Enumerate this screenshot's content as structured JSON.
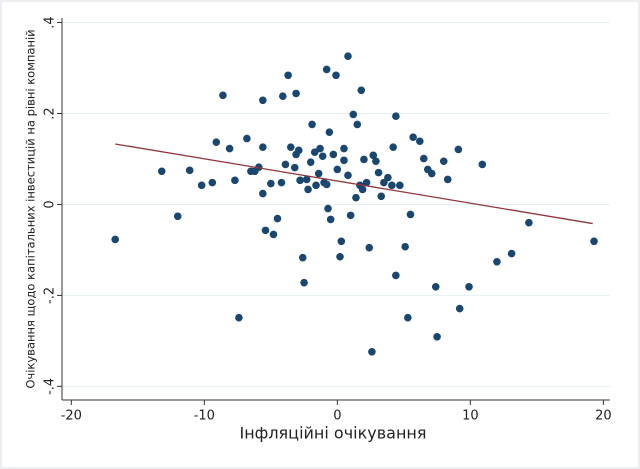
{
  "chart_data": {
    "type": "scatter",
    "x_label": "Інфляційні очікування",
    "y_label": "Очікування щодо капітальних інвестицій на рівні компаній",
    "xlim": [
      -20.7,
      20.5
    ],
    "ylim": [
      -0.43,
      0.41
    ],
    "xticks": [
      -20,
      -10,
      0,
      10,
      20
    ],
    "yticks": [
      {
        "value": -0.4,
        "label": "-.4"
      },
      {
        "value": -0.2,
        "label": "-.2"
      },
      0,
      {
        "value": 0.2,
        "label": ".2"
      },
      {
        "value": 0.4,
        "label": ".4"
      }
    ],
    "grid": true,
    "points": {
      "color": "#1a476f",
      "x": [
        -16.7,
        -13.2,
        -12.0,
        -11.1,
        -10.2,
        -9.4,
        -9.1,
        -8.6,
        -8.1,
        -7.7,
        -7.4,
        -6.8,
        -6.5,
        -6.2,
        -5.9,
        -5.6,
        -5.6,
        -5.6,
        -5.4,
        -5.0,
        -4.8,
        -4.5,
        -4.2,
        -4.1,
        -3.9,
        -3.7,
        -3.5,
        -3.2,
        -3.1,
        -3.1,
        -2.9,
        -2.8,
        -2.6,
        -2.5,
        -2.3,
        -2.2,
        -2.0,
        -1.9,
        -1.7,
        -1.6,
        -1.4,
        -1.3,
        -1.1,
        -1.0,
        -0.8,
        -0.8,
        -0.7,
        -0.6,
        -0.5,
        -0.3,
        -0.1,
        0.0,
        0.2,
        0.3,
        0.5,
        0.5,
        0.8,
        0.8,
        1.0,
        1.2,
        1.4,
        1.5,
        1.7,
        1.8,
        1.9,
        2.0,
        2.2,
        2.4,
        2.6,
        2.7,
        2.9,
        3.1,
        3.3,
        3.5,
        3.8,
        4.1,
        4.2,
        4.4,
        4.4,
        4.7,
        5.1,
        5.3,
        5.5,
        5.7,
        6.2,
        6.5,
        6.8,
        7.1,
        7.4,
        7.5,
        8.0,
        8.3,
        9.1,
        9.2,
        9.9,
        10.9,
        12.0,
        13.1,
        14.4,
        19.3
      ],
      "y": [
        -0.077,
        0.073,
        -0.026,
        0.075,
        0.042,
        0.048,
        0.137,
        0.24,
        0.123,
        0.053,
        -0.249,
        0.145,
        0.073,
        0.073,
        0.082,
        0.229,
        0.126,
        0.024,
        -0.057,
        0.046,
        -0.066,
        -0.031,
        0.048,
        0.238,
        0.088,
        0.284,
        0.126,
        0.081,
        0.244,
        0.11,
        0.119,
        0.053,
        -0.117,
        -0.172,
        0.055,
        0.033,
        0.093,
        0.176,
        0.115,
        0.042,
        0.068,
        0.123,
        0.106,
        0.048,
        0.044,
        0.297,
        -0.009,
        0.159,
        -0.033,
        0.11,
        0.284,
        0.077,
        -0.115,
        -0.081,
        0.097,
        0.123,
        0.326,
        0.064,
        -0.024,
        0.198,
        0.015,
        0.176,
        0.042,
        0.251,
        0.033,
        0.099,
        0.048,
        -0.095,
        -0.324,
        0.108,
        0.095,
        0.07,
        0.018,
        0.048,
        0.059,
        0.042,
        0.126,
        0.194,
        -0.156,
        0.042,
        -0.093,
        -0.249,
        -0.022,
        0.148,
        0.139,
        0.101,
        0.077,
        0.068,
        -0.181,
        -0.291,
        0.095,
        0.055,
        0.121,
        -0.229,
        -0.181,
        0.088,
        -0.126,
        -0.108,
        -0.04,
        -0.081
      ]
    },
    "fit_line": {
      "color": "#90353b",
      "x": [
        -16.7,
        19.2
      ],
      "y": [
        0.133,
        -0.042
      ]
    }
  }
}
